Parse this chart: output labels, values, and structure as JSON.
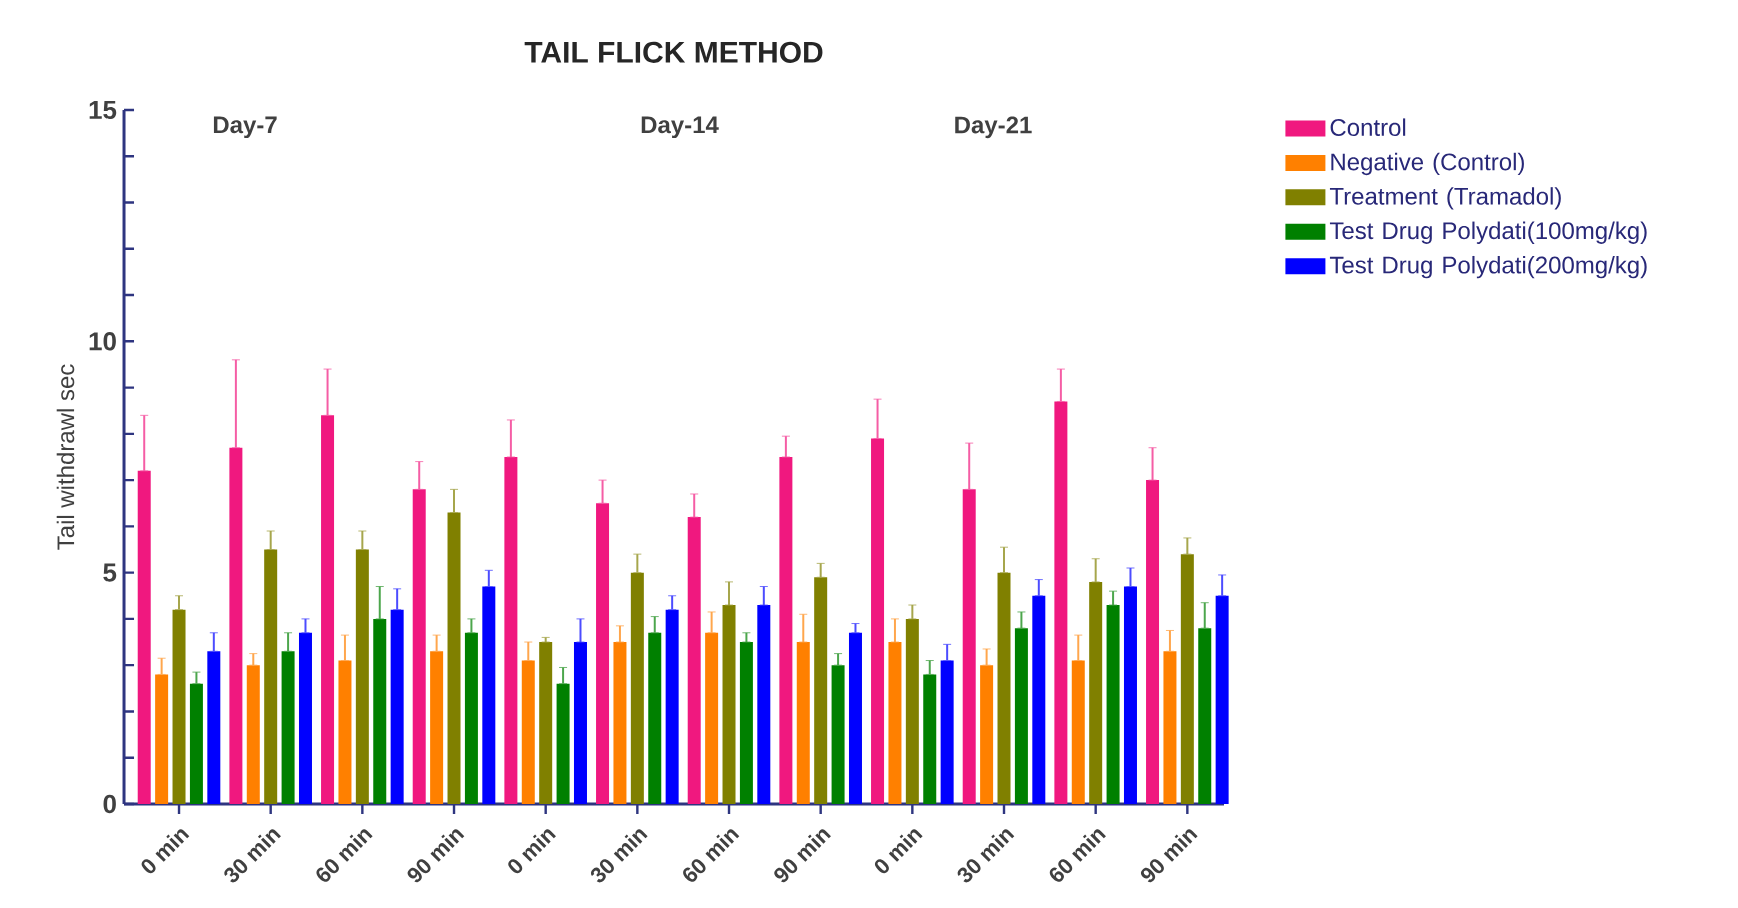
{
  "chart_data": {
    "type": "bar",
    "title": "TAIL FLICK METHOD",
    "ylabel": "Tail withdrawl sec",
    "categories": [
      "0 min",
      "30 min",
      "60 min",
      "90 min",
      "0 min",
      "30 min",
      "60 min",
      "90 min",
      "0 min",
      "30 min",
      "60 min",
      "90 min"
    ],
    "annotations": [
      "Day-7",
      "Day-14",
      "Day-21"
    ],
    "ylim": [
      0,
      15
    ],
    "yticks": [
      0,
      {
        "value": 1,
        "label": null
      },
      {
        "value": 2,
        "label": null
      },
      {
        "value": 3,
        "label": null
      },
      {
        "value": 4,
        "label": null
      },
      5,
      {
        "value": 6,
        "label": null
      },
      {
        "value": 7,
        "label": null
      },
      {
        "value": 8,
        "label": null
      },
      {
        "value": 9,
        "label": null
      },
      10,
      {
        "value": 11,
        "label": null
      },
      {
        "value": 12,
        "label": null
      },
      {
        "value": 13,
        "label": null
      },
      {
        "value": 14,
        "label": null
      },
      15
    ],
    "legend": "right",
    "series": [
      {
        "name": "Control",
        "color": "#f0187f",
        "values": [
          7.2,
          7.7,
          8.4,
          6.8,
          7.5,
          6.5,
          6.2,
          7.5,
          7.9,
          6.8,
          8.7,
          7.0
        ],
        "errors": [
          [
            7.2,
            8.4
          ],
          [
            7.7,
            9.6
          ],
          [
            8.4,
            9.4
          ],
          [
            6.8,
            7.4
          ],
          [
            7.5,
            8.3
          ],
          [
            6.5,
            7.0
          ],
          [
            6.2,
            6.7
          ],
          [
            7.5,
            7.95
          ],
          [
            7.9,
            8.75
          ],
          [
            6.8,
            7.8
          ],
          [
            8.7,
            9.4
          ],
          [
            7.0,
            7.7
          ]
        ]
      },
      {
        "name": "Negative (Control)",
        "color": "#ff8000",
        "values": [
          2.8,
          3.0,
          3.1,
          3.3,
          3.1,
          3.5,
          3.7,
          3.5,
          3.5,
          3.0,
          3.1,
          3.3
        ],
        "errors": [
          [
            2.8,
            3.15
          ],
          [
            3.0,
            3.25
          ],
          [
            3.1,
            3.65
          ],
          [
            3.3,
            3.65
          ],
          [
            3.1,
            3.5
          ],
          [
            3.5,
            3.85
          ],
          [
            3.7,
            4.15
          ],
          [
            3.5,
            4.1
          ],
          [
            3.5,
            4.0
          ],
          [
            3.0,
            3.35
          ],
          [
            3.1,
            3.65
          ],
          [
            3.3,
            3.75
          ]
        ]
      },
      {
        "name": "Treatment (Tramadol)",
        "color": "#808000",
        "values": [
          4.2,
          5.5,
          5.5,
          6.3,
          3.5,
          5.0,
          4.3,
          4.9,
          4.0,
          5.0,
          4.8,
          5.4
        ],
        "errors": [
          [
            4.2,
            4.5
          ],
          [
            5.5,
            5.9
          ],
          [
            5.5,
            5.9
          ],
          [
            6.3,
            6.8
          ],
          [
            3.5,
            3.6
          ],
          [
            5.0,
            5.4
          ],
          [
            4.3,
            4.8
          ],
          [
            4.9,
            5.2
          ],
          [
            4.0,
            4.3
          ],
          [
            5.0,
            5.55
          ],
          [
            4.8,
            5.3
          ],
          [
            5.4,
            5.75
          ]
        ]
      },
      {
        "name": "Test Drug Polydati(100mg/kg)",
        "color": "#008000",
        "values": [
          2.6,
          3.3,
          4.0,
          3.7,
          2.6,
          3.7,
          3.5,
          3.0,
          2.8,
          3.8,
          4.3,
          3.8
        ],
        "errors": [
          [
            2.6,
            2.85
          ],
          [
            3.3,
            3.7
          ],
          [
            4.0,
            4.7
          ],
          [
            3.7,
            4.0
          ],
          [
            2.6,
            2.95
          ],
          [
            3.7,
            4.05
          ],
          [
            3.5,
            3.7
          ],
          [
            3.0,
            3.25
          ],
          [
            2.8,
            3.1
          ],
          [
            3.8,
            4.15
          ],
          [
            4.3,
            4.6
          ],
          [
            3.8,
            4.35
          ]
        ]
      },
      {
        "name": "Test Drug Polydati(200mg/kg)",
        "color": "#0000ff",
        "values": [
          3.3,
          3.7,
          4.2,
          4.7,
          3.5,
          4.2,
          4.3,
          3.7,
          3.1,
          4.5,
          4.7,
          4.5
        ],
        "errors": [
          [
            3.3,
            3.7
          ],
          [
            3.7,
            4.0
          ],
          [
            4.2,
            4.65
          ],
          [
            4.7,
            5.05
          ],
          [
            3.5,
            4.0
          ],
          [
            4.2,
            4.5
          ],
          [
            4.3,
            4.7
          ],
          [
            3.7,
            3.9
          ],
          [
            3.1,
            3.45
          ],
          [
            4.5,
            4.85
          ],
          [
            4.7,
            5.1
          ],
          [
            4.5,
            4.95
          ]
        ]
      }
    ]
  }
}
